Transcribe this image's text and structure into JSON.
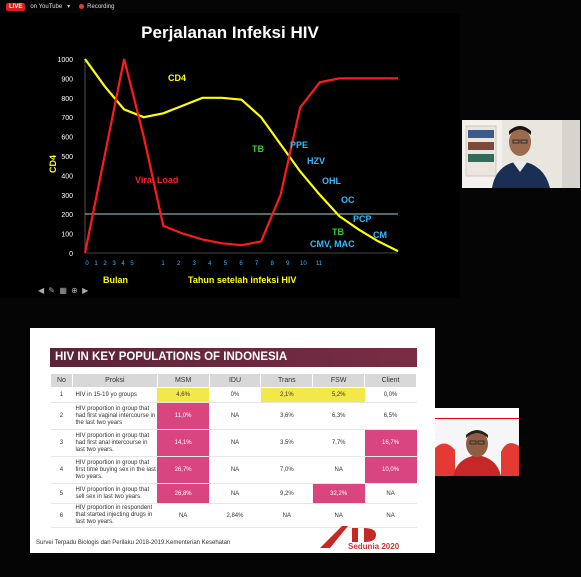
{
  "topbar": {
    "live_badge": "LIVE",
    "platform_label": "on YouTube",
    "recording_label": "Recording"
  },
  "slide1": {
    "title": "Perjalanan Infeksi HIV",
    "annotations": {
      "cd4": "CD4",
      "viral_load": "Viral Load",
      "bulan": "Bulan",
      "tahun": "Tahun setelah infeksi HIV",
      "tb1": "TB",
      "ppe": "PPE",
      "hzv": "HZV",
      "ohl": "OHL",
      "oc": "OC",
      "pcp": "PCP",
      "tb2": "TB",
      "cmv_mac": "CMV, MAC",
      "cm": "CM",
      "y_axis": "CD4"
    },
    "colors": {
      "cd4_line": "#ffff00",
      "viral_line": "#ff1a1a",
      "ref_line": "#9ad7d7",
      "green_label": "#33cc33",
      "blue_label": "#33bbff"
    },
    "chart_data": {
      "type": "line",
      "ylabel": "CD4",
      "ylim": [
        0,
        1000
      ],
      "yticks": [
        0,
        100,
        200,
        300,
        400,
        500,
        600,
        700,
        800,
        900,
        1000
      ],
      "xticks_month": [
        "0",
        "1",
        "2",
        "3",
        "4",
        "5"
      ],
      "xticks_year": [
        "1",
        "2",
        "3",
        "4",
        "5",
        "6",
        "7",
        "8",
        "9",
        "10",
        "11"
      ],
      "reference_line": 200,
      "series": [
        {
          "name": "CD4",
          "values": [
            1000,
            860,
            740,
            700,
            720,
            760,
            800,
            800,
            790,
            700,
            560,
            420,
            300,
            190,
            120,
            60,
            10
          ]
        },
        {
          "name": "Viral Load",
          "values": [
            0,
            500,
            1000,
            600,
            140,
            100,
            70,
            50,
            40,
            60,
            300,
            750,
            880,
            900,
            900,
            900,
            900
          ]
        }
      ]
    }
  },
  "slide2": {
    "title": "HIV IN KEY POPULATIONS OF INDONESIA",
    "columns": [
      "No",
      "Proksi",
      "MSM",
      "IDU",
      "Trans",
      "FSW",
      "Client"
    ],
    "rows": [
      {
        "no": "1",
        "proksi": "HIV in 15-19 yo groups",
        "msm": "4,6%",
        "idu": "0%",
        "trans": "2,1%",
        "fsw": "5,2%",
        "client": "0,0%"
      },
      {
        "no": "2",
        "proksi": "HIV proportion in group that had first vaginal intercourse in the last two years",
        "msm": "11,0%",
        "idu": "NA",
        "trans": "3,6%",
        "fsw": "6,3%",
        "client": "6,5%"
      },
      {
        "no": "3",
        "proksi": "HIV proportion in group that had first anal intercourse in last two years.",
        "msm": "14,1%",
        "idu": "NA",
        "trans": "3,5%",
        "fsw": "7,7%",
        "client": "16,7%"
      },
      {
        "no": "4",
        "proksi": "HIV proportion in group that first time buying sex in the last two years.",
        "msm": "26,7%",
        "idu": "NA",
        "trans": "7,0%",
        "fsw": "NA",
        "client": "10,0%"
      },
      {
        "no": "5",
        "proksi": "HIV proportion in group that sell sex in last two years.",
        "msm": "26,8%",
        "idu": "NA",
        "trans": "9,2%",
        "fsw": "32,2%",
        "client": "NA"
      },
      {
        "no": "6",
        "proksi": "HIV proportion in respondent that started injecting drugs in last two years.",
        "msm": "NA",
        "idu": "2,84%",
        "trans": "NA",
        "fsw": "NA",
        "client": "NA"
      }
    ],
    "footer": "Survei Terpadu Biologis dan Perilaku 2018-2019.Kementerian Kesehatan",
    "logo_text": "Sedunia 2020",
    "colors": {
      "yellow": "#f2e84a",
      "pink": "#d9457f",
      "banner": "#6a2840"
    }
  }
}
